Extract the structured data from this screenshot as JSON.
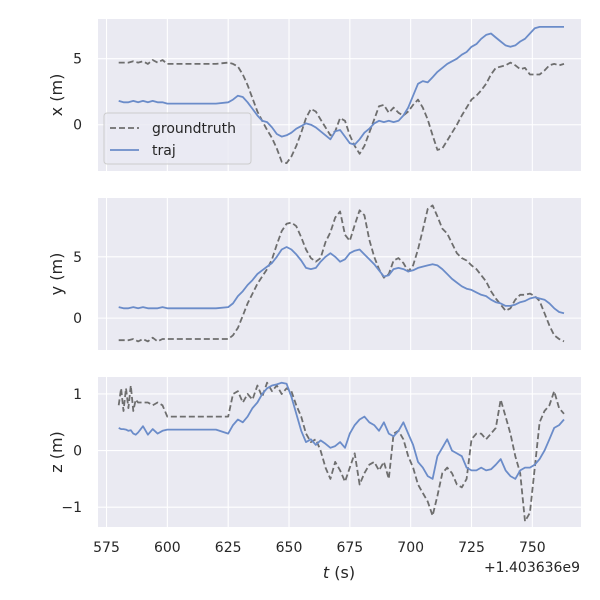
{
  "chart_data": [
    {
      "type": "line",
      "ylabel": "x (m)",
      "ylim": [
        -3.5,
        8.0
      ],
      "yticks": [
        0,
        5
      ],
      "ytick_labels": [
        "0",
        "5"
      ],
      "series": [
        {
          "name": "groundtruth",
          "x": [
            580,
            582,
            584,
            586,
            588,
            590,
            592,
            594,
            596,
            598,
            600,
            605,
            610,
            615,
            620,
            625,
            627,
            629,
            631,
            633,
            635,
            637,
            639,
            641,
            643,
            645,
            647,
            649,
            651,
            653,
            655,
            657,
            659,
            661,
            663,
            665,
            667,
            669,
            671,
            673,
            675,
            677,
            679,
            681,
            683,
            685,
            687,
            689,
            691,
            693,
            695,
            697,
            699,
            701,
            703,
            705,
            707,
            709,
            711,
            713,
            715,
            717,
            719,
            721,
            723,
            725,
            727,
            729,
            731,
            733,
            735,
            737,
            739,
            741,
            743,
            745,
            747,
            749,
            751,
            753,
            755,
            757,
            759,
            761,
            763
          ],
          "y": [
            4.7,
            4.7,
            4.7,
            4.8,
            4.7,
            4.8,
            4.6,
            4.9,
            4.7,
            4.9,
            4.6,
            4.6,
            4.6,
            4.6,
            4.6,
            4.7,
            4.6,
            4.4,
            3.8,
            3.0,
            2.0,
            1.0,
            0.3,
            -0.4,
            -1.0,
            -1.8,
            -2.8,
            -2.9,
            -2.4,
            -1.6,
            -0.6,
            0.5,
            1.2,
            1.0,
            0.4,
            -0.2,
            -0.8,
            -0.5,
            0.5,
            0.3,
            -0.8,
            -1.6,
            -2.2,
            -1.6,
            -0.6,
            0.4,
            1.4,
            1.5,
            0.9,
            1.3,
            0.9,
            0.7,
            1.0,
            1.5,
            1.9,
            1.3,
            0.4,
            -0.8,
            -1.9,
            -1.8,
            -1.2,
            -0.6,
            0.0,
            0.7,
            1.3,
            1.9,
            2.2,
            2.6,
            3.1,
            3.8,
            4.3,
            4.4,
            4.5,
            4.7,
            4.5,
            4.2,
            4.3,
            3.8,
            3.8,
            3.8,
            4.1,
            4.5,
            4.6,
            4.5,
            4.6
          ]
        },
        {
          "name": "traj",
          "x": [
            580,
            582,
            584,
            586,
            588,
            590,
            592,
            594,
            596,
            598,
            600,
            605,
            610,
            615,
            620,
            625,
            627,
            629,
            631,
            633,
            635,
            637,
            639,
            641,
            643,
            645,
            647,
            649,
            651,
            653,
            655,
            657,
            659,
            661,
            663,
            665,
            667,
            669,
            671,
            673,
            675,
            677,
            679,
            681,
            683,
            685,
            687,
            689,
            691,
            693,
            695,
            697,
            699,
            701,
            703,
            705,
            707,
            709,
            711,
            713,
            715,
            717,
            719,
            721,
            723,
            725,
            727,
            729,
            731,
            733,
            735,
            737,
            739,
            741,
            743,
            745,
            747,
            749,
            751,
            753,
            755,
            757,
            759,
            761,
            763
          ],
          "y": [
            1.8,
            1.7,
            1.7,
            1.8,
            1.7,
            1.8,
            1.7,
            1.8,
            1.7,
            1.7,
            1.6,
            1.6,
            1.6,
            1.6,
            1.6,
            1.7,
            1.9,
            2.2,
            2.1,
            1.7,
            1.2,
            0.7,
            0.3,
            0.2,
            -0.2,
            -0.7,
            -0.9,
            -0.8,
            -0.6,
            -0.3,
            -0.1,
            0.1,
            0.0,
            -0.2,
            -0.5,
            -0.8,
            -1.1,
            -0.5,
            -0.4,
            -0.9,
            -1.4,
            -1.5,
            -1.1,
            -0.6,
            -0.3,
            0.1,
            0.3,
            0.2,
            0.3,
            0.2,
            0.3,
            0.7,
            1.3,
            2.2,
            3.1,
            3.3,
            3.2,
            3.6,
            4.0,
            4.3,
            4.6,
            4.8,
            5.0,
            5.3,
            5.5,
            5.9,
            6.1,
            6.5,
            6.8,
            6.9,
            6.6,
            6.3,
            6.0,
            5.9,
            6.0,
            6.3,
            6.5,
            6.9,
            7.3,
            7.4,
            7.4,
            7.4,
            7.4,
            7.4,
            7.4
          ]
        }
      ],
      "legend": [
        "groundtruth",
        "traj"
      ],
      "legend_loc": "center-left"
    },
    {
      "type": "line",
      "ylabel": "y (m)",
      "ylim": [
        -2.6,
        9.8
      ],
      "yticks": [
        0,
        5
      ],
      "ytick_labels": [
        "0",
        "5"
      ],
      "series": [
        {
          "name": "groundtruth",
          "x": [
            580,
            582,
            584,
            586,
            588,
            590,
            592,
            594,
            596,
            598,
            600,
            605,
            610,
            615,
            620,
            625,
            627,
            629,
            631,
            633,
            635,
            637,
            639,
            641,
            643,
            645,
            647,
            649,
            651,
            653,
            655,
            657,
            659,
            661,
            663,
            665,
            667,
            669,
            671,
            673,
            675,
            677,
            679,
            681,
            683,
            685,
            687,
            689,
            691,
            693,
            695,
            697,
            699,
            701,
            703,
            705,
            707,
            709,
            711,
            713,
            715,
            717,
            719,
            721,
            723,
            725,
            727,
            729,
            731,
            733,
            735,
            737,
            739,
            741,
            743,
            745,
            747,
            749,
            751,
            753,
            755,
            757,
            759,
            761,
            763
          ],
          "y": [
            -1.8,
            -1.8,
            -1.8,
            -1.7,
            -1.9,
            -1.7,
            -1.9,
            -1.6,
            -1.9,
            -1.7,
            -1.7,
            -1.7,
            -1.7,
            -1.7,
            -1.7,
            -1.7,
            -1.4,
            -0.8,
            0.2,
            1.2,
            2.0,
            2.8,
            3.4,
            4.0,
            4.8,
            6.0,
            7.1,
            7.7,
            7.8,
            7.5,
            6.6,
            5.6,
            4.9,
            4.6,
            4.9,
            6.2,
            7.0,
            8.2,
            8.7,
            6.8,
            6.3,
            7.6,
            8.8,
            8.4,
            6.4,
            5.0,
            4.0,
            3.3,
            3.6,
            4.7,
            4.9,
            4.5,
            3.8,
            4.3,
            5.6,
            7.2,
            8.9,
            9.2,
            8.3,
            7.3,
            6.9,
            6.1,
            5.3,
            4.9,
            4.7,
            4.3,
            4.0,
            3.5,
            3.0,
            2.2,
            1.6,
            1.1,
            0.6,
            0.8,
            1.5,
            1.9,
            1.9,
            2.0,
            1.8,
            1.4,
            0.4,
            -0.6,
            -1.4,
            -1.7,
            -1.9
          ]
        },
        {
          "name": "traj",
          "x": [
            580,
            582,
            584,
            586,
            588,
            590,
            592,
            594,
            596,
            598,
            600,
            605,
            610,
            615,
            620,
            625,
            627,
            629,
            631,
            633,
            635,
            637,
            639,
            641,
            643,
            645,
            647,
            649,
            651,
            653,
            655,
            657,
            659,
            661,
            663,
            665,
            667,
            669,
            671,
            673,
            675,
            677,
            679,
            681,
            683,
            685,
            687,
            689,
            691,
            693,
            695,
            697,
            699,
            701,
            703,
            705,
            707,
            709,
            711,
            713,
            715,
            717,
            719,
            721,
            723,
            725,
            727,
            729,
            731,
            733,
            735,
            737,
            739,
            741,
            743,
            745,
            747,
            749,
            751,
            753,
            755,
            757,
            759,
            761,
            763
          ],
          "y": [
            0.9,
            0.8,
            0.8,
            0.9,
            0.8,
            0.9,
            0.8,
            0.8,
            0.8,
            0.9,
            0.8,
            0.8,
            0.8,
            0.8,
            0.8,
            0.9,
            1.2,
            1.8,
            2.2,
            2.7,
            3.1,
            3.6,
            3.9,
            4.2,
            4.5,
            5.0,
            5.6,
            5.8,
            5.6,
            5.2,
            4.7,
            4.1,
            4.0,
            4.1,
            4.6,
            5.0,
            5.3,
            5.0,
            4.6,
            4.8,
            5.3,
            5.5,
            5.6,
            5.2,
            4.8,
            4.4,
            3.9,
            3.4,
            3.5,
            4.0,
            4.1,
            4.0,
            3.8,
            3.9,
            4.1,
            4.2,
            4.3,
            4.4,
            4.3,
            4.0,
            3.6,
            3.2,
            2.9,
            2.6,
            2.4,
            2.3,
            2.1,
            1.9,
            1.8,
            1.5,
            1.3,
            1.2,
            1.0,
            1.0,
            1.1,
            1.3,
            1.4,
            1.6,
            1.7,
            1.6,
            1.5,
            1.2,
            0.8,
            0.5,
            0.4
          ]
        }
      ]
    },
    {
      "type": "line",
      "ylabel": "z (m)",
      "xlabel": "t (s)",
      "ylim": [
        -1.35,
        1.3
      ],
      "yticks": [
        -1,
        0,
        1
      ],
      "ytick_labels": [
        "−1",
        "0",
        "1"
      ],
      "xlim": [
        571.5,
        770
      ],
      "xticks": [
        575,
        600,
        625,
        650,
        675,
        700,
        725,
        750
      ],
      "xtick_labels": [
        "575",
        "600",
        "625",
        "650",
        "675",
        "700",
        "725",
        "750"
      ],
      "x_offset_label": "+1.403636e9",
      "series": [
        {
          "name": "groundtruth",
          "x": [
            580,
            581,
            582,
            583,
            584,
            585,
            586,
            587,
            588,
            590,
            592,
            594,
            596,
            598,
            600,
            605,
            610,
            615,
            620,
            625,
            627,
            629,
            631,
            633,
            635,
            637,
            639,
            641,
            643,
            645,
            647,
            649,
            651,
            653,
            655,
            657,
            659,
            661,
            663,
            665,
            667,
            669,
            671,
            673,
            675,
            677,
            679,
            681,
            683,
            685,
            687,
            689,
            691,
            693,
            695,
            697,
            699,
            701,
            703,
            705,
            707,
            709,
            711,
            713,
            715,
            717,
            719,
            721,
            723,
            725,
            727,
            729,
            731,
            733,
            735,
            737,
            739,
            741,
            743,
            745,
            747,
            749,
            751,
            753,
            755,
            757,
            759,
            761,
            763
          ],
          "y": [
            0.8,
            1.1,
            0.7,
            1.1,
            0.75,
            1.15,
            0.7,
            0.9,
            0.85,
            0.85,
            0.85,
            0.8,
            0.85,
            0.8,
            0.6,
            0.6,
            0.6,
            0.6,
            0.6,
            0.6,
            1.0,
            1.05,
            0.85,
            1.0,
            0.9,
            1.15,
            0.95,
            1.2,
            1.05,
            1.15,
            1.0,
            1.1,
            1.05,
            0.8,
            0.6,
            0.3,
            0.15,
            0.2,
            0.0,
            -0.3,
            -0.5,
            -0.2,
            -0.35,
            -0.55,
            -0.3,
            -0.05,
            -0.6,
            -0.4,
            -0.25,
            -0.2,
            -0.35,
            -0.2,
            -0.5,
            0.3,
            0.35,
            0.2,
            -0.1,
            -0.3,
            -0.6,
            -0.75,
            -0.9,
            -1.15,
            -0.8,
            -0.4,
            -0.3,
            -0.4,
            -0.6,
            -0.65,
            -0.5,
            0.2,
            0.3,
            0.3,
            0.2,
            0.3,
            0.4,
            0.9,
            0.6,
            0.3,
            -0.1,
            -0.4,
            -1.25,
            -1.1,
            -0.3,
            0.5,
            0.7,
            0.8,
            1.05,
            0.75,
            0.65
          ]
        },
        {
          "name": "traj",
          "x": [
            580,
            581,
            582,
            583,
            584,
            585,
            586,
            587,
            588,
            590,
            592,
            594,
            596,
            598,
            600,
            605,
            610,
            615,
            620,
            625,
            627,
            629,
            631,
            633,
            635,
            637,
            639,
            641,
            643,
            645,
            647,
            649,
            651,
            653,
            655,
            657,
            659,
            661,
            663,
            665,
            667,
            669,
            671,
            673,
            675,
            677,
            679,
            681,
            683,
            685,
            687,
            689,
            691,
            693,
            695,
            697,
            699,
            701,
            703,
            705,
            707,
            709,
            711,
            713,
            715,
            717,
            719,
            721,
            723,
            725,
            727,
            729,
            731,
            733,
            735,
            737,
            739,
            741,
            743,
            745,
            747,
            749,
            751,
            753,
            755,
            757,
            759,
            761,
            763
          ],
          "y": [
            0.4,
            0.38,
            0.38,
            0.37,
            0.35,
            0.36,
            0.3,
            0.28,
            0.32,
            0.43,
            0.28,
            0.38,
            0.3,
            0.35,
            0.37,
            0.37,
            0.37,
            0.37,
            0.37,
            0.3,
            0.45,
            0.55,
            0.5,
            0.6,
            0.75,
            0.85,
            1.0,
            1.1,
            1.15,
            1.17,
            1.2,
            1.18,
            0.95,
            0.65,
            0.35,
            0.15,
            0.2,
            0.1,
            0.18,
            0.12,
            0.05,
            0.08,
            0.15,
            0.05,
            0.3,
            0.45,
            0.55,
            0.6,
            0.5,
            0.45,
            0.35,
            0.5,
            0.3,
            0.25,
            0.35,
            0.5,
            0.3,
            0.1,
            -0.2,
            -0.3,
            -0.45,
            -0.5,
            -0.1,
            0.05,
            0.2,
            0.0,
            -0.05,
            -0.1,
            -0.3,
            -0.35,
            -0.35,
            -0.3,
            -0.35,
            -0.33,
            -0.25,
            -0.15,
            -0.35,
            -0.45,
            -0.5,
            -0.35,
            -0.3,
            -0.3,
            -0.25,
            -0.15,
            0.0,
            0.2,
            0.4,
            0.45,
            0.55
          ]
        }
      ]
    }
  ],
  "colors": {
    "groundtruth": "#6e6e6e",
    "traj": "#6b8cc9",
    "panel_bg": "#eaeaf2",
    "grid": "#ffffff",
    "text": "#262626"
  }
}
